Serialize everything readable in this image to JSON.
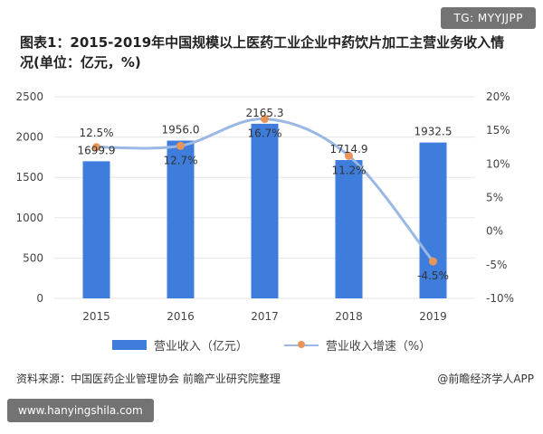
{
  "overlay": {
    "tag": "TG: MYYJJPP",
    "url": "www.hanyingshila.com"
  },
  "title": {
    "line1": "图表1：2015-2019年中国规模以上医药工业企业中药饮片加工主营业务收入情",
    "line2": "况(单位：亿元，%)"
  },
  "footer": {
    "source": "资料来源：中国医药企业管理协会 前瞻产业研究院整理",
    "brand": "@前瞻经济学人APP"
  },
  "colors": {
    "bar": "#3f7ddc",
    "line": "#9ab8e3",
    "marker": "#e8955a",
    "grid": "#e6e6e6"
  },
  "chart_data": {
    "type": "bar",
    "title": "图表1：2015-2019年中国规模以上医药工业企业中药饮片加工主营业务收入情况(单位：亿元，%)",
    "categories": [
      "2015",
      "2016",
      "2017",
      "2018",
      "2019"
    ],
    "series": [
      {
        "name": "营业收入（亿元）",
        "type": "bar",
        "axis": "left",
        "values": [
          1699.9,
          1956.0,
          2165.3,
          1714.9,
          1932.5
        ],
        "labels": [
          "1699.9",
          "1956.0",
          "2165.3",
          "1714.9",
          "1932.5"
        ]
      },
      {
        "name": "营业收入增速（%）",
        "type": "line",
        "axis": "right",
        "values": [
          12.5,
          12.7,
          16.7,
          11.2,
          -4.5
        ],
        "labels": [
          "12.5%",
          "12.7%",
          "16.7%",
          "11.2%",
          "-4.5%"
        ]
      }
    ],
    "y_left": {
      "min": 0,
      "max": 2500,
      "ticks": [
        "0",
        "500",
        "1000",
        "1500",
        "2000",
        "2500"
      ]
    },
    "y_right": {
      "min": -10,
      "max": 20,
      "ticks": [
        "-10%",
        "-5%",
        "0%",
        "5%",
        "10%",
        "15%",
        "20%"
      ]
    },
    "grid": true,
    "legend": "bottom"
  }
}
